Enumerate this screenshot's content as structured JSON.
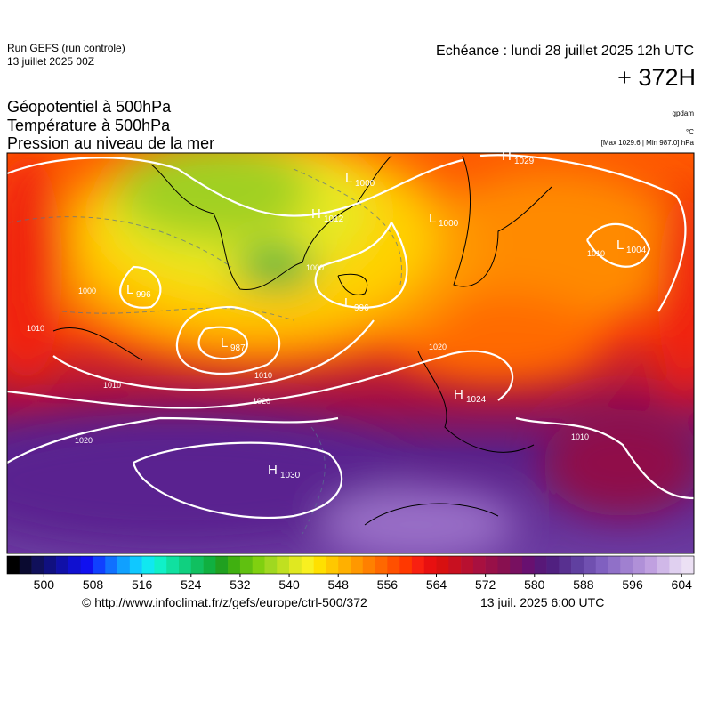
{
  "header": {
    "run": "Run GEFS (run controle)",
    "run_date": "13 juillet 2025 00Z",
    "valid": "Echéance : lundi 28 juillet 2025 12h UTC",
    "lead": "+ 372H",
    "fields": [
      "Géopotentiel à 500hPa",
      "Température à 500hPa",
      "Pression au niveau de la mer"
    ],
    "unit_geo": "gpdam",
    "unit_temp": "°C",
    "unit_pressure": "[Max 1029.6 | Min 987.0] hPa"
  },
  "map": {
    "centers": [
      {
        "kind": "L",
        "value": "1000"
      },
      {
        "kind": "H",
        "value": "1012"
      },
      {
        "kind": "L",
        "value": "1000"
      },
      {
        "kind": "H",
        "value": "1029"
      },
      {
        "kind": "L",
        "value": "1004"
      },
      {
        "kind": "L",
        "value": "996"
      },
      {
        "kind": "L",
        "value": "996"
      },
      {
        "kind": "L",
        "value": "987"
      },
      {
        "kind": "H",
        "value": "1024"
      },
      {
        "kind": "H",
        "value": "1030"
      }
    ],
    "contour_labels": [
      "1010",
      "1020",
      "1020",
      "1010",
      "1000",
      "1010",
      "1020",
      "1010",
      "1010",
      "1000"
    ]
  },
  "colorbar": {
    "range": [
      494,
      606
    ],
    "ticks": [
      500,
      508,
      516,
      524,
      532,
      540,
      548,
      556,
      564,
      572,
      580,
      588,
      596,
      604
    ],
    "colors": [
      "#000000",
      "#0a0a30",
      "#10105a",
      "#101080",
      "#1010a8",
      "#1010d0",
      "#1010f0",
      "#1040ff",
      "#1070ff",
      "#10a0ff",
      "#10c8ff",
      "#10e8f0",
      "#10f0c8",
      "#10e0a0",
      "#10d080",
      "#10c060",
      "#10b040",
      "#20a020",
      "#40b010",
      "#60c010",
      "#80d010",
      "#a0d820",
      "#c0e020",
      "#e0e820",
      "#f8f020",
      "#ffe000",
      "#ffc800",
      "#ffb000",
      "#ff9800",
      "#ff8000",
      "#ff6800",
      "#ff5000",
      "#ff3800",
      "#f82010",
      "#e81010",
      "#d81010",
      "#c81020",
      "#b81030",
      "#a81040",
      "#981048",
      "#881050",
      "#781060",
      "#681070",
      "#581878",
      "#502080",
      "#583090",
      "#6040a0",
      "#7050b0",
      "#8060c0",
      "#9070c8",
      "#a080d0",
      "#b090d8",
      "#c0a0e0",
      "#d0b8e8",
      "#e0d0f0",
      "#ece0f4"
    ]
  },
  "footer": {
    "source": "© http://www.infoclimat.fr/z/gefs/europe/ctrl-500/372",
    "made": "13 juil. 2025  6:00 UTC"
  }
}
